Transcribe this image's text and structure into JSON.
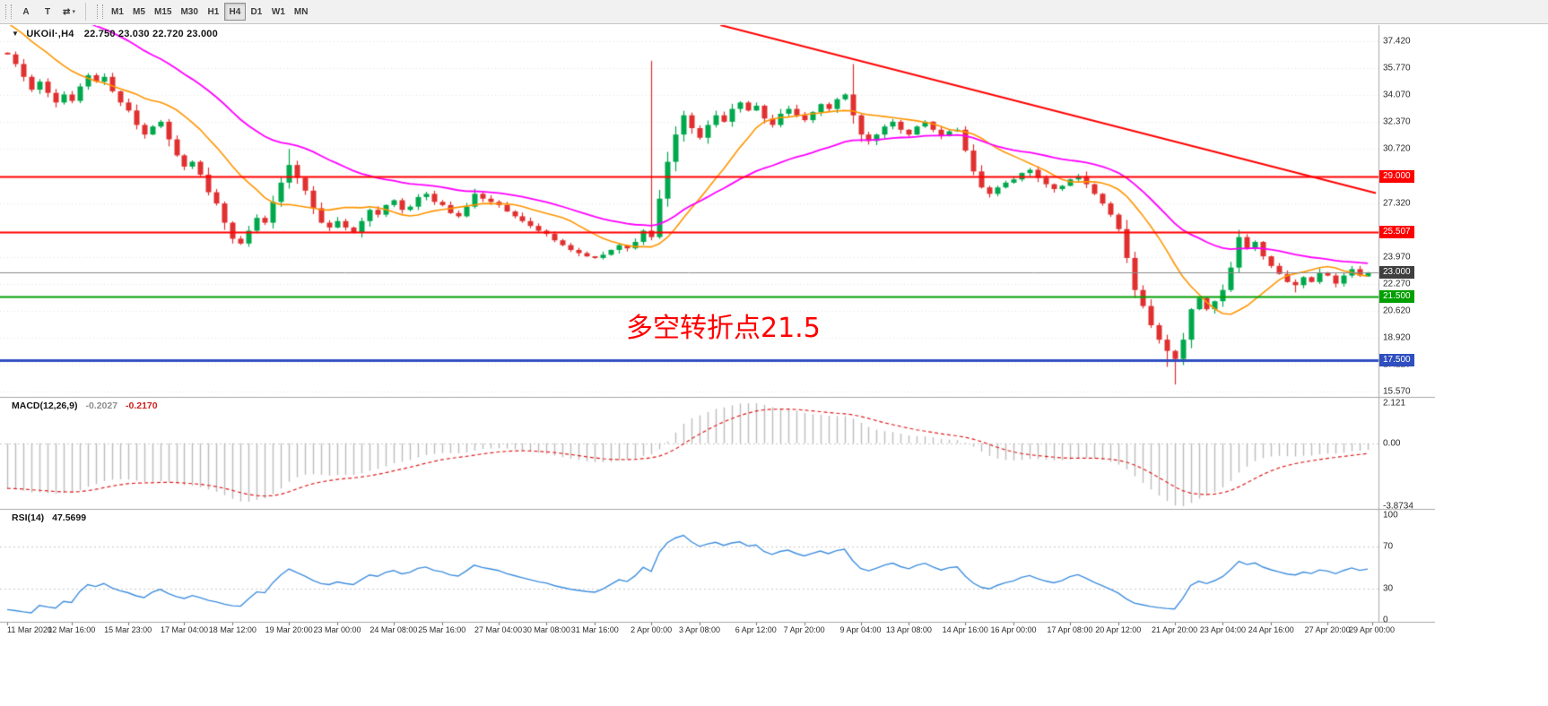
{
  "toolbar": {
    "tools": [
      {
        "name": "label-tool",
        "glyph": "A"
      },
      {
        "name": "text-tool",
        "glyph": "T"
      },
      {
        "name": "arrows-tool",
        "glyph": "⇄",
        "caret": "▾"
      }
    ],
    "timeframes": [
      {
        "label": "M1",
        "active": false
      },
      {
        "label": "M5",
        "active": false
      },
      {
        "label": "M15",
        "active": false
      },
      {
        "label": "M30",
        "active": false
      },
      {
        "label": "H1",
        "active": false
      },
      {
        "label": "H4",
        "active": true
      },
      {
        "label": "D1",
        "active": false
      },
      {
        "label": "W1",
        "active": false
      },
      {
        "label": "MN",
        "active": false
      }
    ]
  },
  "main_header": {
    "marker": "▼",
    "title": "UKOil·,H4",
    "ohlc": "22.750 23.030 22.720 23.000"
  },
  "annotation": {
    "text": "多空转折点21.5",
    "color": "#FF0000"
  },
  "chart_data": {
    "main": {
      "type": "candlestick",
      "symbol": "UKOil",
      "period": "H4",
      "up_color": "#00A84D",
      "down_color": "#E03030",
      "ma_fast": {
        "type": "sma",
        "period": 13,
        "color": "#FF9500"
      },
      "ma_slow": {
        "type": "ema",
        "period": 34,
        "color": "#FF00FF"
      },
      "ylim": [
        15.23,
        38.43
      ],
      "price_ticks": [
        "37.420",
        "35.770",
        "34.070",
        "32.370",
        "30.720",
        "27.320",
        "23.970",
        "22.270",
        "20.620",
        "18.920",
        "17.220",
        "15.570"
      ],
      "hlines": [
        {
          "value": 29.0,
          "label": "29.000",
          "color": "#FF0000",
          "width": 2
        },
        {
          "value": 25.507,
          "label": "25.507",
          "color": "#FF0000",
          "width": 2
        },
        {
          "value": 21.5,
          "label": "21.500",
          "color": "#00A000",
          "width": 2
        },
        {
          "value": 17.5,
          "label": "17.500",
          "color": "#2F4FC0",
          "width": 3
        }
      ],
      "current_price": {
        "value": 23.0,
        "label": "23.000",
        "box_color": "#3f3f3f",
        "line_color": "#8a8a8a"
      },
      "trendline": {
        "x1_idx": 88.6,
        "price1": 38.43,
        "x2_idx": 170,
        "price2": 27.95,
        "color": "#FF0000",
        "width": 2
      },
      "closes": [
        36.6,
        36.0,
        35.2,
        34.4,
        34.9,
        34.2,
        33.6,
        34.1,
        33.7,
        34.6,
        35.3,
        34.9,
        35.2,
        34.3,
        33.6,
        33.1,
        32.2,
        31.6,
        32.1,
        32.4,
        31.3,
        30.3,
        29.6,
        29.9,
        29.1,
        28.0,
        27.3,
        26.1,
        25.1,
        24.8,
        25.6,
        26.4,
        26.1,
        27.4,
        28.6,
        29.7,
        28.9,
        28.1,
        27.0,
        26.1,
        25.8,
        26.2,
        25.8,
        25.5,
        26.2,
        26.9,
        26.6,
        27.2,
        27.5,
        26.9,
        27.1,
        27.7,
        27.9,
        27.4,
        27.2,
        26.7,
        26.5,
        27.1,
        27.9,
        27.6,
        27.4,
        27.2,
        26.8,
        26.5,
        26.2,
        25.9,
        25.6,
        25.4,
        25.0,
        24.7,
        24.4,
        24.2,
        24.0,
        23.9,
        24.1,
        24.4,
        24.7,
        24.5,
        24.9,
        25.6,
        25.2,
        27.6,
        29.9,
        31.6,
        32.8,
        32.0,
        31.4,
        32.2,
        32.8,
        32.4,
        33.2,
        33.6,
        33.1,
        33.4,
        32.6,
        32.2,
        32.9,
        33.2,
        32.8,
        32.5,
        33.0,
        33.5,
        33.2,
        33.8,
        34.1,
        32.8,
        31.6,
        31.2,
        31.6,
        32.1,
        32.4,
        31.9,
        31.6,
        32.1,
        32.4,
        31.9,
        31.5,
        31.8,
        31.9,
        30.6,
        29.3,
        28.3,
        27.9,
        28.3,
        28.6,
        28.8,
        29.2,
        29.4,
        28.9,
        28.5,
        28.2,
        28.4,
        28.8,
        29.0,
        28.5,
        27.9,
        27.3,
        26.6,
        25.7,
        23.9,
        21.9,
        20.9,
        19.7,
        18.8,
        18.1,
        17.6,
        18.8,
        20.7,
        21.4,
        20.7,
        21.2,
        21.9,
        23.3,
        25.2,
        24.5,
        24.9,
        24.0,
        23.4,
        22.9,
        22.4,
        22.2,
        22.7,
        22.4,
        23.0,
        22.8,
        22.3,
        22.8,
        23.2,
        22.8,
        23.0
      ],
      "wick_overrides": {
        "35": {
          "h": 30.7
        },
        "80": {
          "h": 36.2,
          "l": 25.0
        },
        "105": {
          "h": 36.0
        },
        "144": {
          "l": 17.1
        },
        "145": {
          "l": 16.0
        },
        "153": {
          "h": 25.65
        },
        "160": {
          "l": 21.75
        },
        "169": {
          "o": 22.75,
          "h": 23.03,
          "l": 22.72
        }
      },
      "history_prepend": {
        "bars": 60,
        "from": 56.0,
        "to": 37.0
      },
      "time_ticks": [
        {
          "label": "11 Mar 2020",
          "idx": 0
        },
        {
          "label": "12 Mar 16:00",
          "idx": 8
        },
        {
          "label": "15 Mar 23:00",
          "idx": 15
        },
        {
          "label": "17 Mar 04:00",
          "idx": 22
        },
        {
          "label": "18 Mar 12:00",
          "idx": 28
        },
        {
          "label": "19 Mar 20:00",
          "idx": 35
        },
        {
          "label": "23 Mar 00:00",
          "idx": 41
        },
        {
          "label": "24 Mar 08:00",
          "idx": 48
        },
        {
          "label": "25 Mar 16:00",
          "idx": 54
        },
        {
          "label": "27 Mar 04:00",
          "idx": 61
        },
        {
          "label": "30 Mar 08:00",
          "idx": 67
        },
        {
          "label": "31 Mar 16:00",
          "idx": 73
        },
        {
          "label": "2 Apr 00:00",
          "idx": 80
        },
        {
          "label": "3 Apr 08:00",
          "idx": 86
        },
        {
          "label": "6 Apr 12:00",
          "idx": 93
        },
        {
          "label": "7 Apr 20:00",
          "idx": 99
        },
        {
          "label": "9 Apr 04:00",
          "idx": 106
        },
        {
          "label": "13 Apr 08:00",
          "idx": 112
        },
        {
          "label": "14 Apr 16:00",
          "idx": 119
        },
        {
          "label": "16 Apr 00:00",
          "idx": 125
        },
        {
          "label": "17 Apr 08:00",
          "idx": 132
        },
        {
          "label": "20 Apr 12:00",
          "idx": 138
        },
        {
          "label": "21 Apr 20:00",
          "idx": 145
        },
        {
          "label": "23 Apr 04:00",
          "idx": 151
        },
        {
          "label": "24 Apr 16:00",
          "idx": 157
        },
        {
          "label": "27 Apr 20:00",
          "idx": 164
        },
        {
          "label": "29 Apr 00:00",
          "idx": 169.5
        }
      ]
    },
    "macd": {
      "type": "macd",
      "label": "MACD(12,26,9)",
      "value": "-0.2027",
      "signal_value": "-0.2170",
      "params": [
        12,
        26,
        9
      ],
      "axis_ticks": [
        "2.121",
        "0.00",
        "-3.8734"
      ],
      "histogram_color": "#bdbdbd",
      "signal_color": "#E02020"
    },
    "rsi": {
      "type": "line",
      "label": "RSI(14)",
      "value": "47.5699",
      "period": 14,
      "levels": [
        70,
        30
      ],
      "axis_ticks": [
        "100",
        "70",
        "30",
        "0"
      ],
      "line_color": "#3E8EDE",
      "ylim": [
        0,
        100
      ]
    }
  }
}
